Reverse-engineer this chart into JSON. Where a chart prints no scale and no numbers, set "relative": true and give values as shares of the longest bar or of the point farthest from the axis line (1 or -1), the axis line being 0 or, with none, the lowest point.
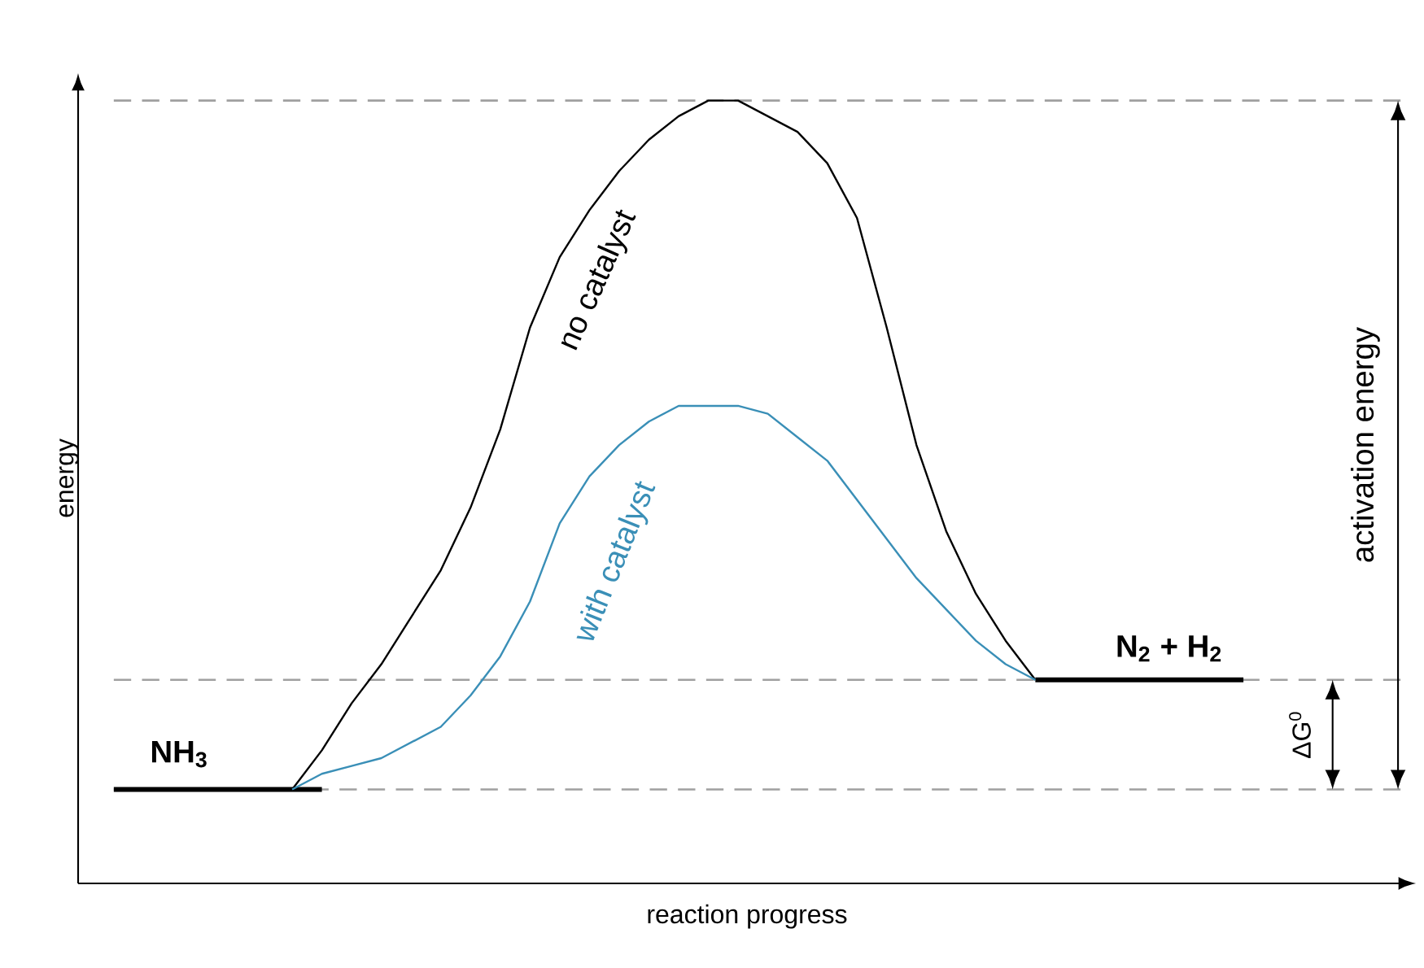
{
  "chart_data": {
    "type": "line",
    "relative": true,
    "xlabel": "reaction progress",
    "ylabel": "energy",
    "marker": "none",
    "categories": [
      null,
      null,
      null,
      null,
      null,
      null,
      null,
      null,
      null,
      null,
      null,
      null,
      null,
      null,
      null,
      null,
      null,
      null,
      null,
      null,
      null,
      null,
      null,
      null,
      null,
      null,
      null,
      null,
      null,
      null,
      null,
      null,
      null,
      null,
      null,
      null,
      null,
      null,
      null
    ],
    "series": [
      {
        "name": "NH$_{3}$",
        "color": "#000000",
        "values": [
          0.12,
          0.12,
          0.12,
          0.12,
          0.12,
          0.12,
          0.12,
          0.12,
          null,
          null,
          null,
          null,
          null,
          null,
          null,
          null,
          null,
          null,
          null,
          null,
          null,
          null,
          null,
          null,
          null,
          null,
          null,
          null,
          null,
          null,
          null,
          null,
          null,
          null,
          null,
          null,
          null,
          null,
          null
        ]
      },
      {
        "name": "N$_{2}$ + H$_{2}$",
        "color": "#000000",
        "values": [
          null,
          null,
          null,
          null,
          null,
          null,
          null,
          null,
          null,
          null,
          null,
          null,
          null,
          null,
          null,
          null,
          null,
          null,
          null,
          null,
          null,
          null,
          null,
          null,
          null,
          null,
          null,
          null,
          null,
          null,
          null,
          0.26,
          0.26,
          0.26,
          0.26,
          0.26,
          0.26,
          0.26,
          0.26
        ]
      },
      {
        "name": "no catalyst",
        "color": "#000000",
        "values": [
          null,
          null,
          null,
          null,
          null,
          null,
          0.12,
          0.17,
          0.23,
          0.28,
          0.34,
          0.4,
          0.48,
          0.58,
          0.71,
          0.8,
          0.86,
          0.91,
          0.95,
          0.98,
          1,
          1,
          0.98,
          0.96,
          0.92,
          0.85,
          0.71,
          0.56,
          0.45,
          0.37,
          0.31,
          0.26,
          null,
          null,
          null,
          null,
          null,
          null,
          null
        ]
      },
      {
        "name": "with catalyst",
        "color": "#3a8fb7",
        "values": [
          null,
          null,
          null,
          null,
          null,
          null,
          0.12,
          0.14,
          0.15,
          0.16,
          0.18,
          0.2,
          0.24,
          0.29,
          0.36,
          0.46,
          0.52,
          0.56,
          0.59,
          0.61,
          0.61,
          0.61,
          0.6,
          0.57,
          0.54,
          0.49,
          0.44,
          0.39,
          0.35,
          0.31,
          0.28,
          0.26,
          null,
          null,
          null,
          null,
          null,
          null,
          null
        ]
      }
    ],
    "ref_lines": [
      {
        "axis": "y",
        "value": 0.12,
        "color": "#a0a0a0",
        "line_style": "dashed"
      },
      {
        "axis": "y",
        "value": 0.26,
        "color": "#a0a0a0",
        "line_style": "dashed"
      },
      {
        "axis": "y",
        "value": 1,
        "color": "#a0a0a0",
        "line_style": "dashed"
      }
    ],
    "annotations": [
      "activation energy",
      "ΔG$^{0}$"
    ]
  }
}
